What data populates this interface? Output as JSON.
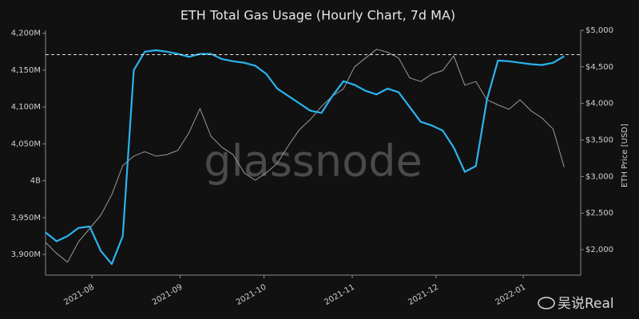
{
  "chart_data": {
    "type": "line",
    "title": "ETH Total Gas Usage (Hourly Chart, 7d MA)",
    "y2_label": "ETH Price [USD]",
    "watermark": "glassnode",
    "source_mark": "吴说Real",
    "xlim": [
      0,
      48.5
    ],
    "xticks": [
      {
        "value": 4.2,
        "label": "2021-08"
      },
      {
        "value": 12.2,
        "label": "2021-09"
      },
      {
        "value": 19.8,
        "label": "2021-10"
      },
      {
        "value": 27.8,
        "label": "2021-11"
      },
      {
        "value": 35.4,
        "label": "2021-12"
      },
      {
        "value": 43.3,
        "label": "2022-01"
      }
    ],
    "ylim": [
      3872,
      4204
    ],
    "yticks": [
      {
        "value": 3900,
        "label": "3,900M"
      },
      {
        "value": 3950,
        "label": "3,950M"
      },
      {
        "value": 4000,
        "label": "4B"
      },
      {
        "value": 4050,
        "label": "4,050M"
      },
      {
        "value": 4100,
        "label": "4,100M"
      },
      {
        "value": 4150,
        "label": "4,150M"
      },
      {
        "value": 4200,
        "label": "4,200M"
      }
    ],
    "y2lim": [
      1652,
      5000
    ],
    "y2ticks": [
      {
        "value": 2000,
        "label": "$2,000"
      },
      {
        "value": 2500,
        "label": "$2,500"
      },
      {
        "value": 3000,
        "label": "$3,000"
      },
      {
        "value": 3500,
        "label": "$3,500"
      },
      {
        "value": 4000,
        "label": "$4,000"
      },
      {
        "value": 4500,
        "label": "$4,500"
      },
      {
        "value": 5000,
        "label": "$5,000"
      }
    ],
    "hline": 4171,
    "series": [
      {
        "name": "Total Gas Usage",
        "color": "#2bb3ee",
        "width": 2.2,
        "values": [
          3930,
          3918,
          3925,
          3936,
          3938,
          3905,
          3887,
          3925,
          4150,
          4175,
          4177,
          4175,
          4172,
          4168,
          4172,
          4172,
          4165,
          4162,
          4160,
          4156,
          4145,
          4125,
          4115,
          4105,
          4095,
          4092,
          4115,
          4135,
          4130,
          4122,
          4117,
          4125,
          4120,
          4100,
          4080,
          4075,
          4068,
          4045,
          4012,
          4020,
          4110,
          4163,
          4162,
          4160,
          4158,
          4157,
          4160,
          4169
        ]
      },
      {
        "name": "ETH Price",
        "color": "#9a9a9a",
        "width": 1,
        "axis": "y2",
        "values": [
          2100,
          1950,
          1830,
          2110,
          2290,
          2470,
          2750,
          3150,
          3280,
          3340,
          3280,
          3300,
          3360,
          3600,
          3930,
          3550,
          3400,
          3300,
          3050,
          2950,
          3050,
          3180,
          3420,
          3640,
          3780,
          3960,
          4100,
          4200,
          4500,
          4620,
          4740,
          4700,
          4620,
          4350,
          4300,
          4400,
          4450,
          4650,
          4250,
          4300,
          4050,
          3980,
          3920,
          4050,
          3900,
          3800,
          3650,
          3130
        ]
      }
    ]
  }
}
